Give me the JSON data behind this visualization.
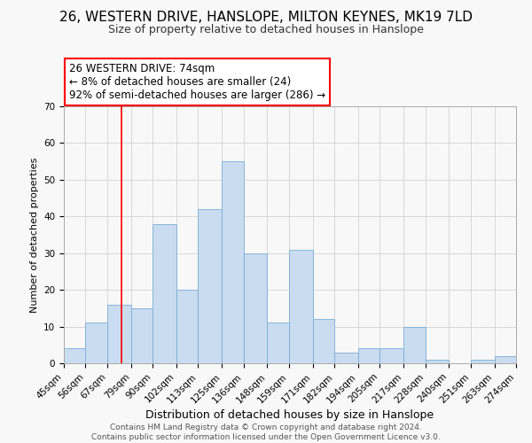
{
  "title": "26, WESTERN DRIVE, HANSLOPE, MILTON KEYNES, MK19 7LD",
  "subtitle": "Size of property relative to detached houses in Hanslope",
  "xlabel": "Distribution of detached houses by size in Hanslope",
  "ylabel": "Number of detached properties",
  "footer_line1": "Contains HM Land Registry data © Crown copyright and database right 2024.",
  "footer_line2": "Contains public sector information licensed under the Open Government Licence v3.0.",
  "annotation_title": "26 WESTERN DRIVE: 74sqm",
  "annotation_line2": "← 8% of detached houses are smaller (24)",
  "annotation_line3": "92% of semi-detached houses are larger (286) →",
  "bin_edges": [
    45,
    56,
    67,
    79,
    90,
    102,
    113,
    125,
    136,
    148,
    159,
    171,
    182,
    194,
    205,
    217,
    228,
    240,
    251,
    263,
    274
  ],
  "bin_counts": [
    4,
    11,
    16,
    15,
    38,
    20,
    42,
    55,
    30,
    11,
    31,
    12,
    3,
    4,
    4,
    10,
    1,
    0,
    1,
    2
  ],
  "bar_color": "#c9dcf0",
  "bar_edge_color": "#7aadd4",
  "property_line_x": 74,
  "property_line_color": "red",
  "ylim": [
    0,
    70
  ],
  "yticks": [
    0,
    10,
    20,
    30,
    40,
    50,
    60,
    70
  ],
  "annotation_box_color": "white",
  "annotation_box_edge_color": "red",
  "background_color": "#f8f8f8",
  "grid_color": "#cccccc",
  "title_fontsize": 11,
  "subtitle_fontsize": 9,
  "xlabel_fontsize": 9,
  "ylabel_fontsize": 8,
  "tick_label_fontsize": 7.5,
  "annotation_fontsize": 8.5,
  "footer_fontsize": 6.5
}
